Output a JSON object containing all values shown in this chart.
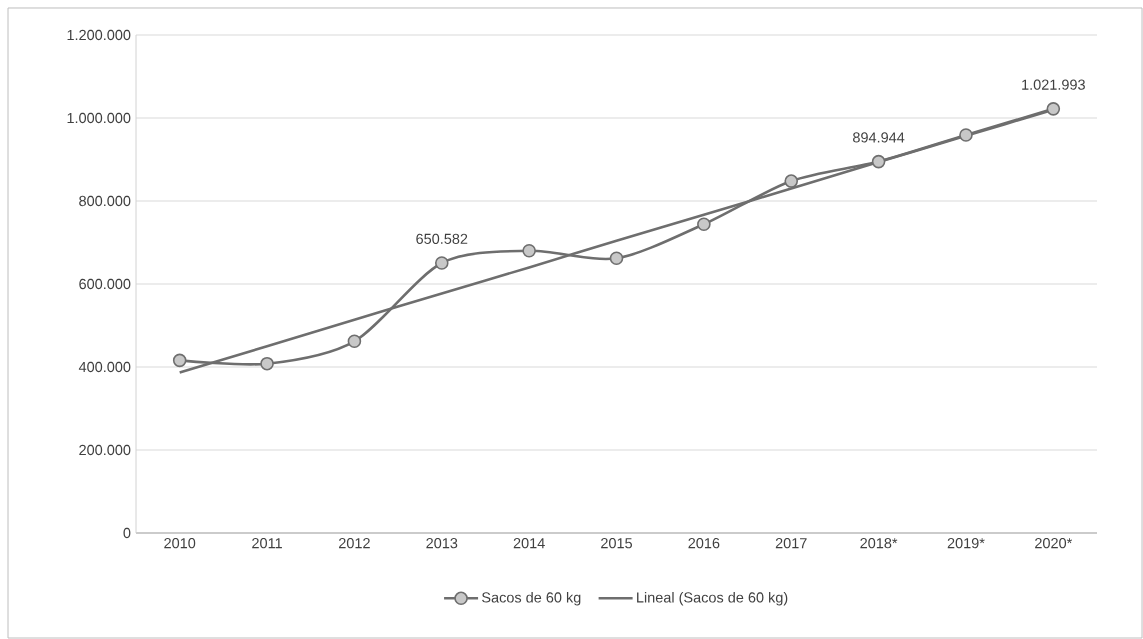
{
  "chart_data": {
    "type": "line",
    "categories": [
      "2010",
      "2011",
      "2012",
      "2013",
      "2014",
      "2015",
      "2016",
      "2017",
      "2018*",
      "2019*",
      "2020*"
    ],
    "series": [
      {
        "name": "Sacos de 60 kg",
        "color": "#6e6e6e",
        "marker": "circle",
        "values": [
          416000,
          408000,
          462000,
          650582,
          680000,
          662000,
          744000,
          848000,
          894944,
          959000,
          1021993
        ],
        "value_labels": [
          null,
          null,
          null,
          "650.582",
          null,
          null,
          null,
          null,
          "894.944",
          null,
          "1.021.993"
        ]
      },
      {
        "name": "Lineal (Sacos de 60 kg)",
        "color": "#6e6e6e",
        "marker": "none",
        "values": [
          387000,
          450000,
          514000,
          577000,
          640000,
          704000,
          767000,
          830000,
          894000,
          957000,
          1020000
        ]
      }
    ],
    "ylim": [
      0,
      1200000
    ],
    "yticks": [
      0,
      {
        "value": 200000,
        "label": "200.000"
      },
      {
        "value": 400000,
        "label": "400.000"
      },
      {
        "value": 600000,
        "label": "600.000"
      },
      {
        "value": 800000,
        "label": "800.000"
      },
      {
        "value": 1000000,
        "label": "1.000.000"
      },
      {
        "value": 1200000,
        "label": "1.200.000"
      }
    ],
    "grid": "y",
    "legend": "bottom"
  }
}
